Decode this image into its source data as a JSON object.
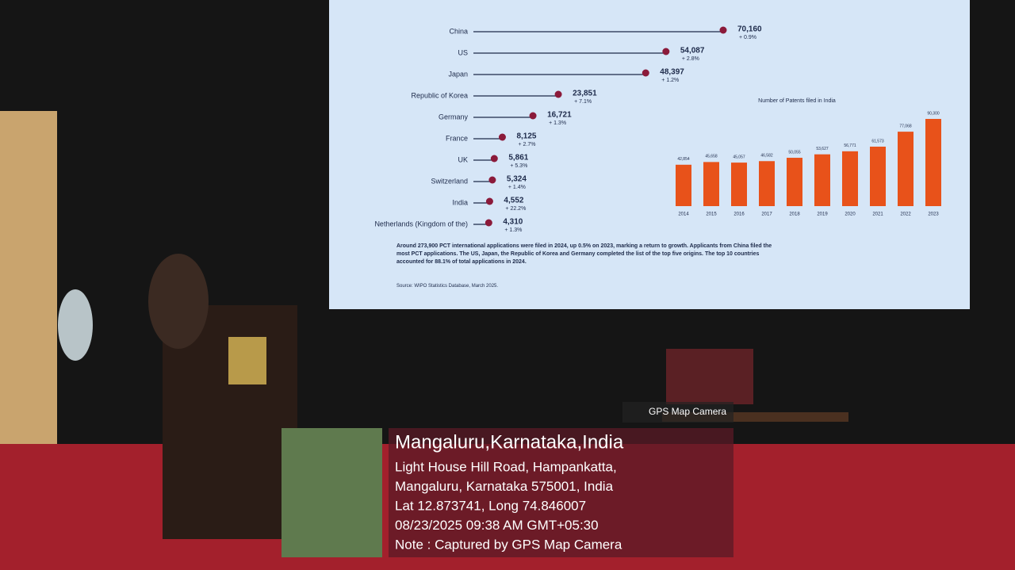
{
  "chart_data": [
    {
      "type": "lollipop",
      "categories": [
        "China",
        "US",
        "Japan",
        "Republic of Korea",
        "Germany",
        "France",
        "UK",
        "Switzerland",
        "India",
        "Netherlands (Kingdom of the)"
      ],
      "values": [
        70160,
        54087,
        48397,
        23851,
        16721,
        8125,
        5861,
        5324,
        4552,
        4310
      ],
      "value_labels": [
        "70,160",
        "54,087",
        "48,397",
        "23,851",
        "16,721",
        "8,125",
        "5,861",
        "5,324",
        "4,552",
        "4,310"
      ],
      "annotations": [
        "+ 0.9%",
        "+ 2.8%",
        "+ 1.2%",
        "+ 7.1%",
        "+ 1.3%",
        "+ 2.7%",
        "+ 5.3%",
        "+ 1.4%",
        "+ 22.2%",
        "+ 1.3%"
      ],
      "color": "#8b1a3a"
    },
    {
      "type": "bar",
      "title": "Number of Patents filed in India",
      "categories": [
        "2014",
        "2015",
        "2016",
        "2017",
        "2018",
        "2019",
        "2020",
        "2021",
        "2022",
        "2023"
      ],
      "values": [
        42854,
        45658,
        45057,
        46582,
        50055,
        53627,
        56771,
        61573,
        77068,
        90300
      ],
      "value_labels": [
        "42,854",
        "45,658",
        "45,057",
        "46,582",
        "50,055",
        "53,627",
        "56,771",
        "61,573",
        "77,068",
        "90,300"
      ],
      "color": "#e8521a"
    }
  ],
  "slide": {
    "footnote": "Around 273,900 PCT international applications were filed in 2024, up 0.5% on 2023, marking a return to growth. Applicants from China filed the most PCT applications. The US, Japan, the Republic of Korea and Germany completed the list of the top five origins. The top 10 countries accounted for 88.1% of total applications in 2024.",
    "source": "Source: WIPO Statistics Database, March 2025."
  },
  "overlay": {
    "app": "GPS Map Camera",
    "city": "Mangaluru,Karnataka,India",
    "lines": [
      "Light House Hill Road, Hampankatta,",
      "Mangaluru, Karnataka 575001, India",
      "Lat 12.873741, Long 74.846007",
      "08/23/2025 09:38 AM GMT+05:30",
      "Note : Captured by GPS Map Camera"
    ]
  }
}
